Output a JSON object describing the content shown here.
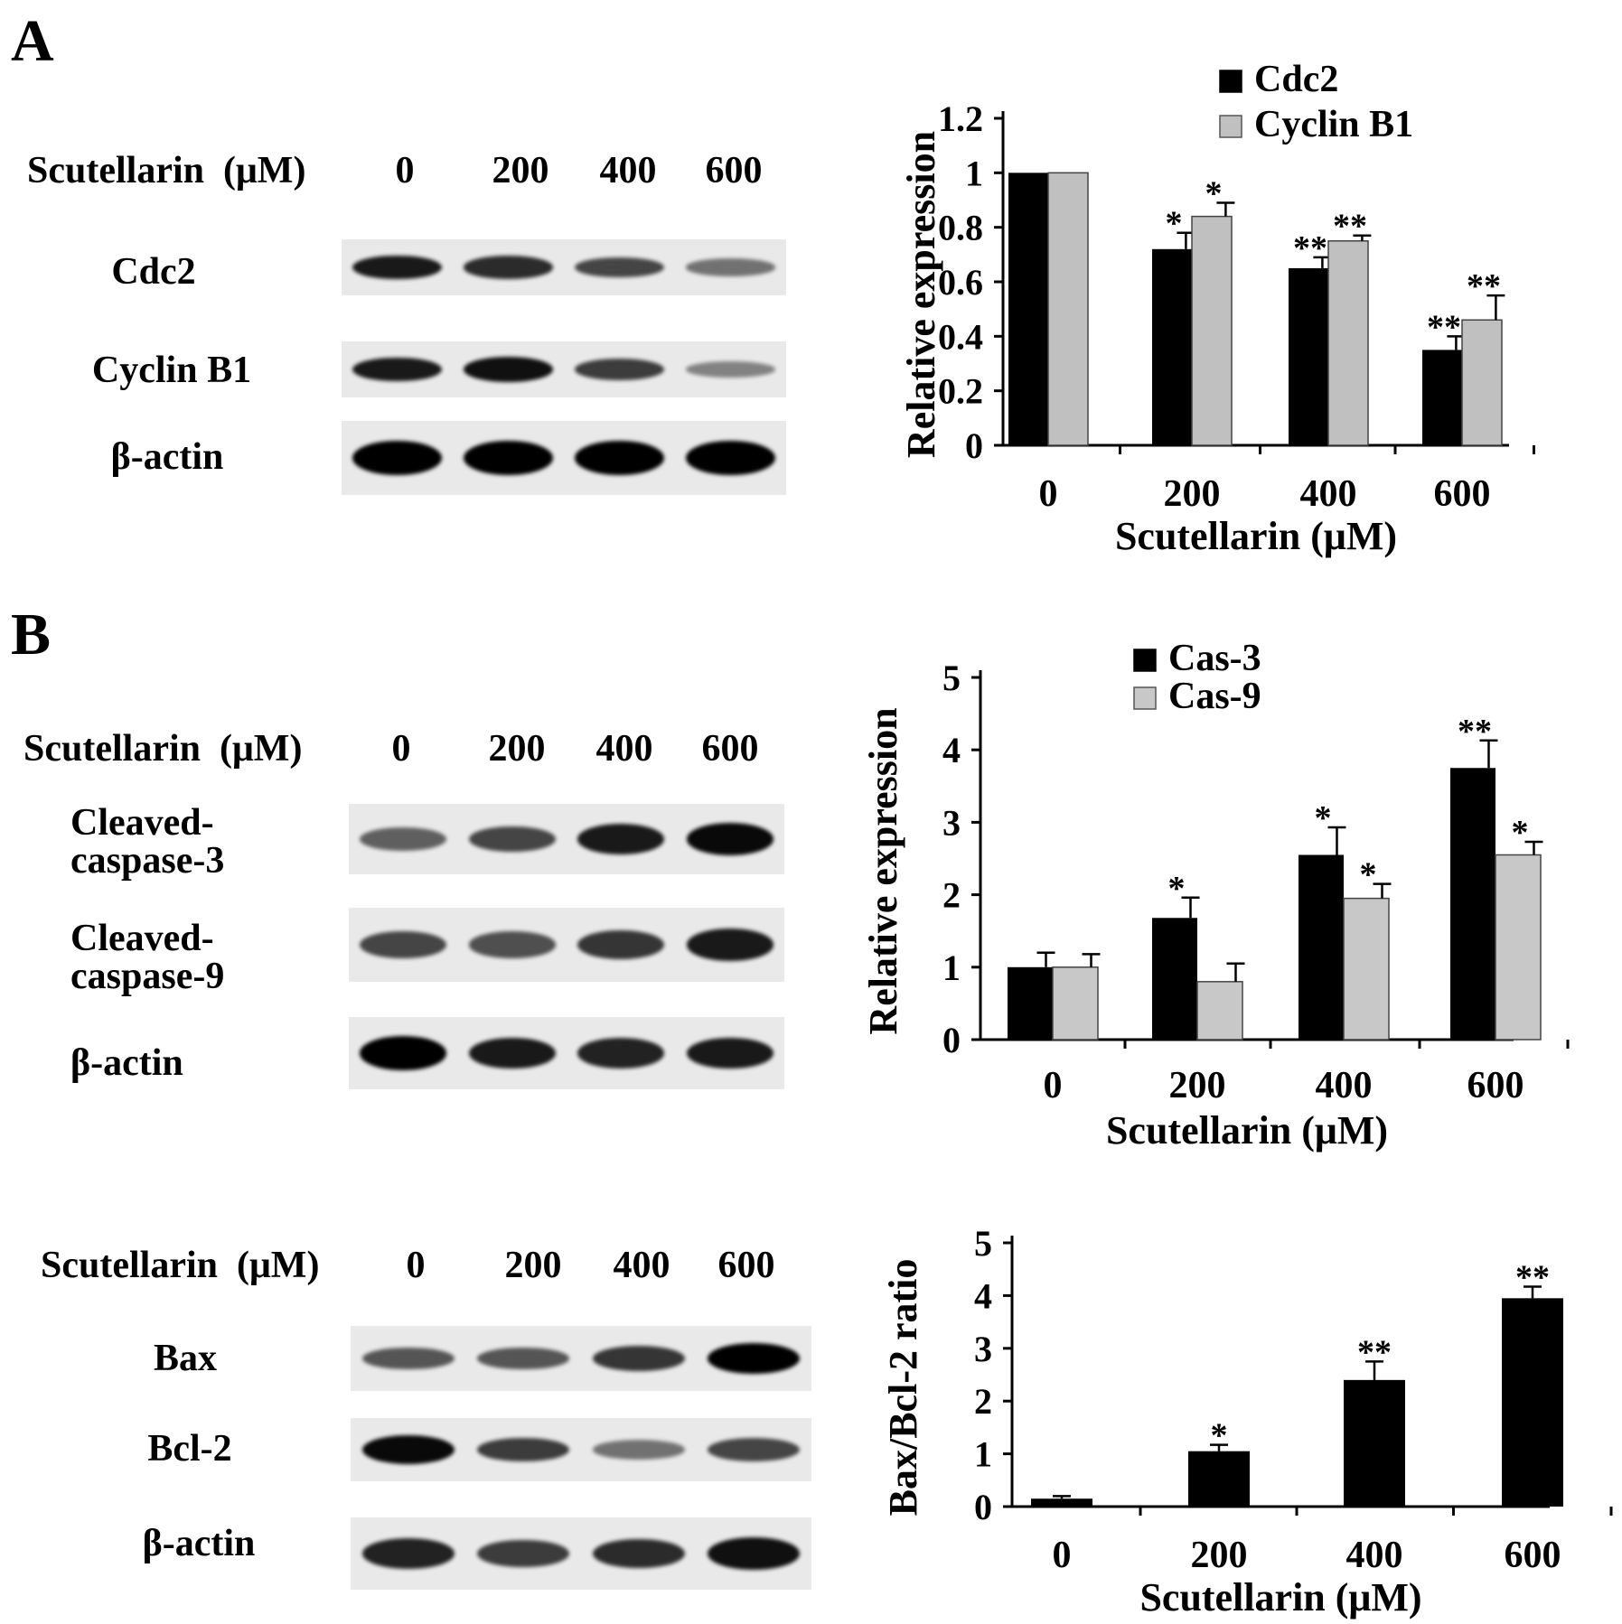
{
  "panels": {
    "A": {
      "letter": "A"
    },
    "B": {
      "letter": "B"
    }
  },
  "blots": [
    {
      "id": "blot-a",
      "scutellarin_label": "Scutellarin",
      "unit_label": "(μM)",
      "doses": [
        "0",
        "200",
        "400",
        "600"
      ],
      "rows": [
        {
          "label": "Cdc2",
          "intensity": [
            0.85,
            0.75,
            0.6,
            0.35
          ]
        },
        {
          "label": "Cyclin B1",
          "intensity": [
            0.85,
            0.9,
            0.65,
            0.25
          ]
        },
        {
          "label": "β-actin",
          "intensity": [
            1.0,
            1.0,
            1.0,
            1.0
          ]
        }
      ]
    },
    {
      "id": "blot-b1",
      "scutellarin_label": "Scutellarin",
      "unit_label": "(μM)",
      "doses": [
        "0",
        "200",
        "400",
        "600"
      ],
      "rows": [
        {
          "label_line1": "Cleaved-",
          "label_line2": "caspase-3",
          "intensity": [
            0.45,
            0.6,
            0.85,
            0.95
          ]
        },
        {
          "label_line1": "Cleaved-",
          "label_line2": "caspase-9",
          "intensity": [
            0.6,
            0.55,
            0.7,
            0.85
          ]
        },
        {
          "label": "β-actin",
          "intensity": [
            1.0,
            0.85,
            0.8,
            0.85
          ]
        }
      ]
    },
    {
      "id": "blot-b2",
      "scutellarin_label": "Scutellarin",
      "unit_label": "(μM)",
      "doses": [
        "0",
        "200",
        "400",
        "600"
      ],
      "rows": [
        {
          "label": "Bax",
          "intensity": [
            0.5,
            0.5,
            0.7,
            1.0
          ]
        },
        {
          "label": "Bcl-2",
          "intensity": [
            0.95,
            0.65,
            0.35,
            0.6
          ]
        },
        {
          "label": "β-actin",
          "intensity": [
            0.8,
            0.65,
            0.75,
            0.9
          ]
        }
      ]
    }
  ],
  "chart_data": [
    {
      "type": "bar",
      "categories": [
        "0",
        "200",
        "400",
        "600"
      ],
      "series": [
        {
          "name": "Cdc2",
          "values": [
            1.0,
            0.72,
            0.65,
            0.35
          ],
          "errors": [
            0,
            0.06,
            0.04,
            0.05
          ],
          "sig": [
            "",
            "*",
            "**",
            "**"
          ],
          "color": "#000000"
        },
        {
          "name": "Cyclin B1",
          "values": [
            1.0,
            0.84,
            0.75,
            0.46
          ],
          "errors": [
            0,
            0.05,
            0.02,
            0.09
          ],
          "sig": [
            "",
            "*",
            "**",
            "**"
          ],
          "color": "#c0c0c0"
        }
      ],
      "xlabel": "Scutellarin  (μM)",
      "ylabel": "Relative expression",
      "ylim": [
        0,
        1.2
      ],
      "yticks": [
        "0",
        "0.2",
        "0.4",
        "0.6",
        "0.8",
        "1",
        "1.2"
      ],
      "legend": "top-right"
    },
    {
      "type": "bar",
      "categories": [
        "0",
        "200",
        "400",
        "600"
      ],
      "series": [
        {
          "name": "Cas-3",
          "values": [
            1.0,
            1.68,
            2.55,
            3.75
          ],
          "errors": [
            0.2,
            0.28,
            0.38,
            0.38
          ],
          "sig": [
            "",
            "*",
            "*",
            "**"
          ],
          "color": "#000000"
        },
        {
          "name": "Cas-9",
          "values": [
            1.0,
            0.8,
            1.95,
            2.55
          ],
          "errors": [
            0.18,
            0.25,
            0.2,
            0.18
          ],
          "sig": [
            "",
            "",
            "*",
            "*"
          ],
          "color": "#c8c8c8"
        }
      ],
      "xlabel": "Scutellarin  (μM)",
      "ylabel": "Relative expression",
      "ylim": [
        0,
        5
      ],
      "yticks": [
        "0",
        "1",
        "2",
        "3",
        "4",
        "5"
      ],
      "legend": "top-center"
    },
    {
      "type": "bar",
      "categories": [
        "0",
        "200",
        "400",
        "600"
      ],
      "series": [
        {
          "name": "",
          "values": [
            0.15,
            1.05,
            2.4,
            3.95
          ],
          "errors": [
            0.05,
            0.12,
            0.35,
            0.22
          ],
          "sig": [
            "",
            "*",
            "**",
            "**"
          ],
          "color": "#000000"
        }
      ],
      "xlabel": "Scutellarin  (μM)",
      "ylabel": "Bax/Bcl-2 ratio",
      "ylim": [
        0,
        5
      ],
      "yticks": [
        "0",
        "1",
        "2",
        "3",
        "4",
        "5"
      ],
      "legend": "none"
    }
  ]
}
